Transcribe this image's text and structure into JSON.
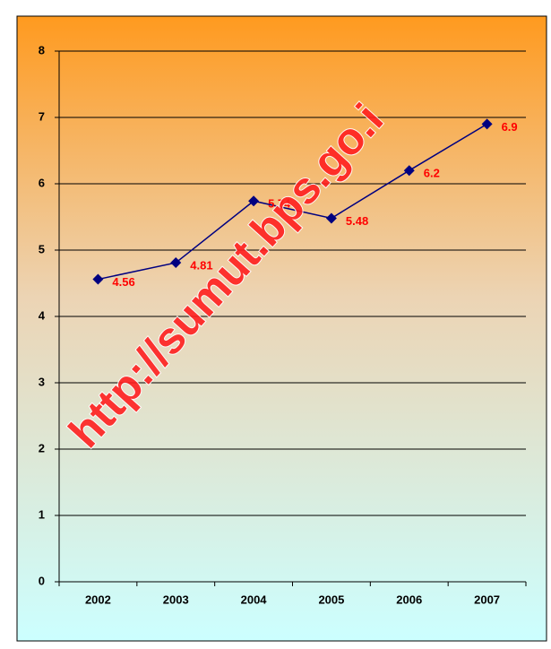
{
  "chart_data": {
    "type": "line",
    "categories": [
      "2002",
      "2003",
      "2004",
      "2005",
      "2006",
      "2007"
    ],
    "series": [
      {
        "color": "#000080",
        "values": [
          4.56,
          4.81,
          5.74,
          5.48,
          6.2,
          6.9
        ]
      }
    ],
    "label_color": "#ff0000",
    "ylim": [
      0,
      8
    ],
    "yticks": [
      0,
      1,
      2,
      3,
      4,
      5,
      6,
      7,
      8
    ],
    "grid": true,
    "watermark": "http://sumut.bps.go.i"
  }
}
